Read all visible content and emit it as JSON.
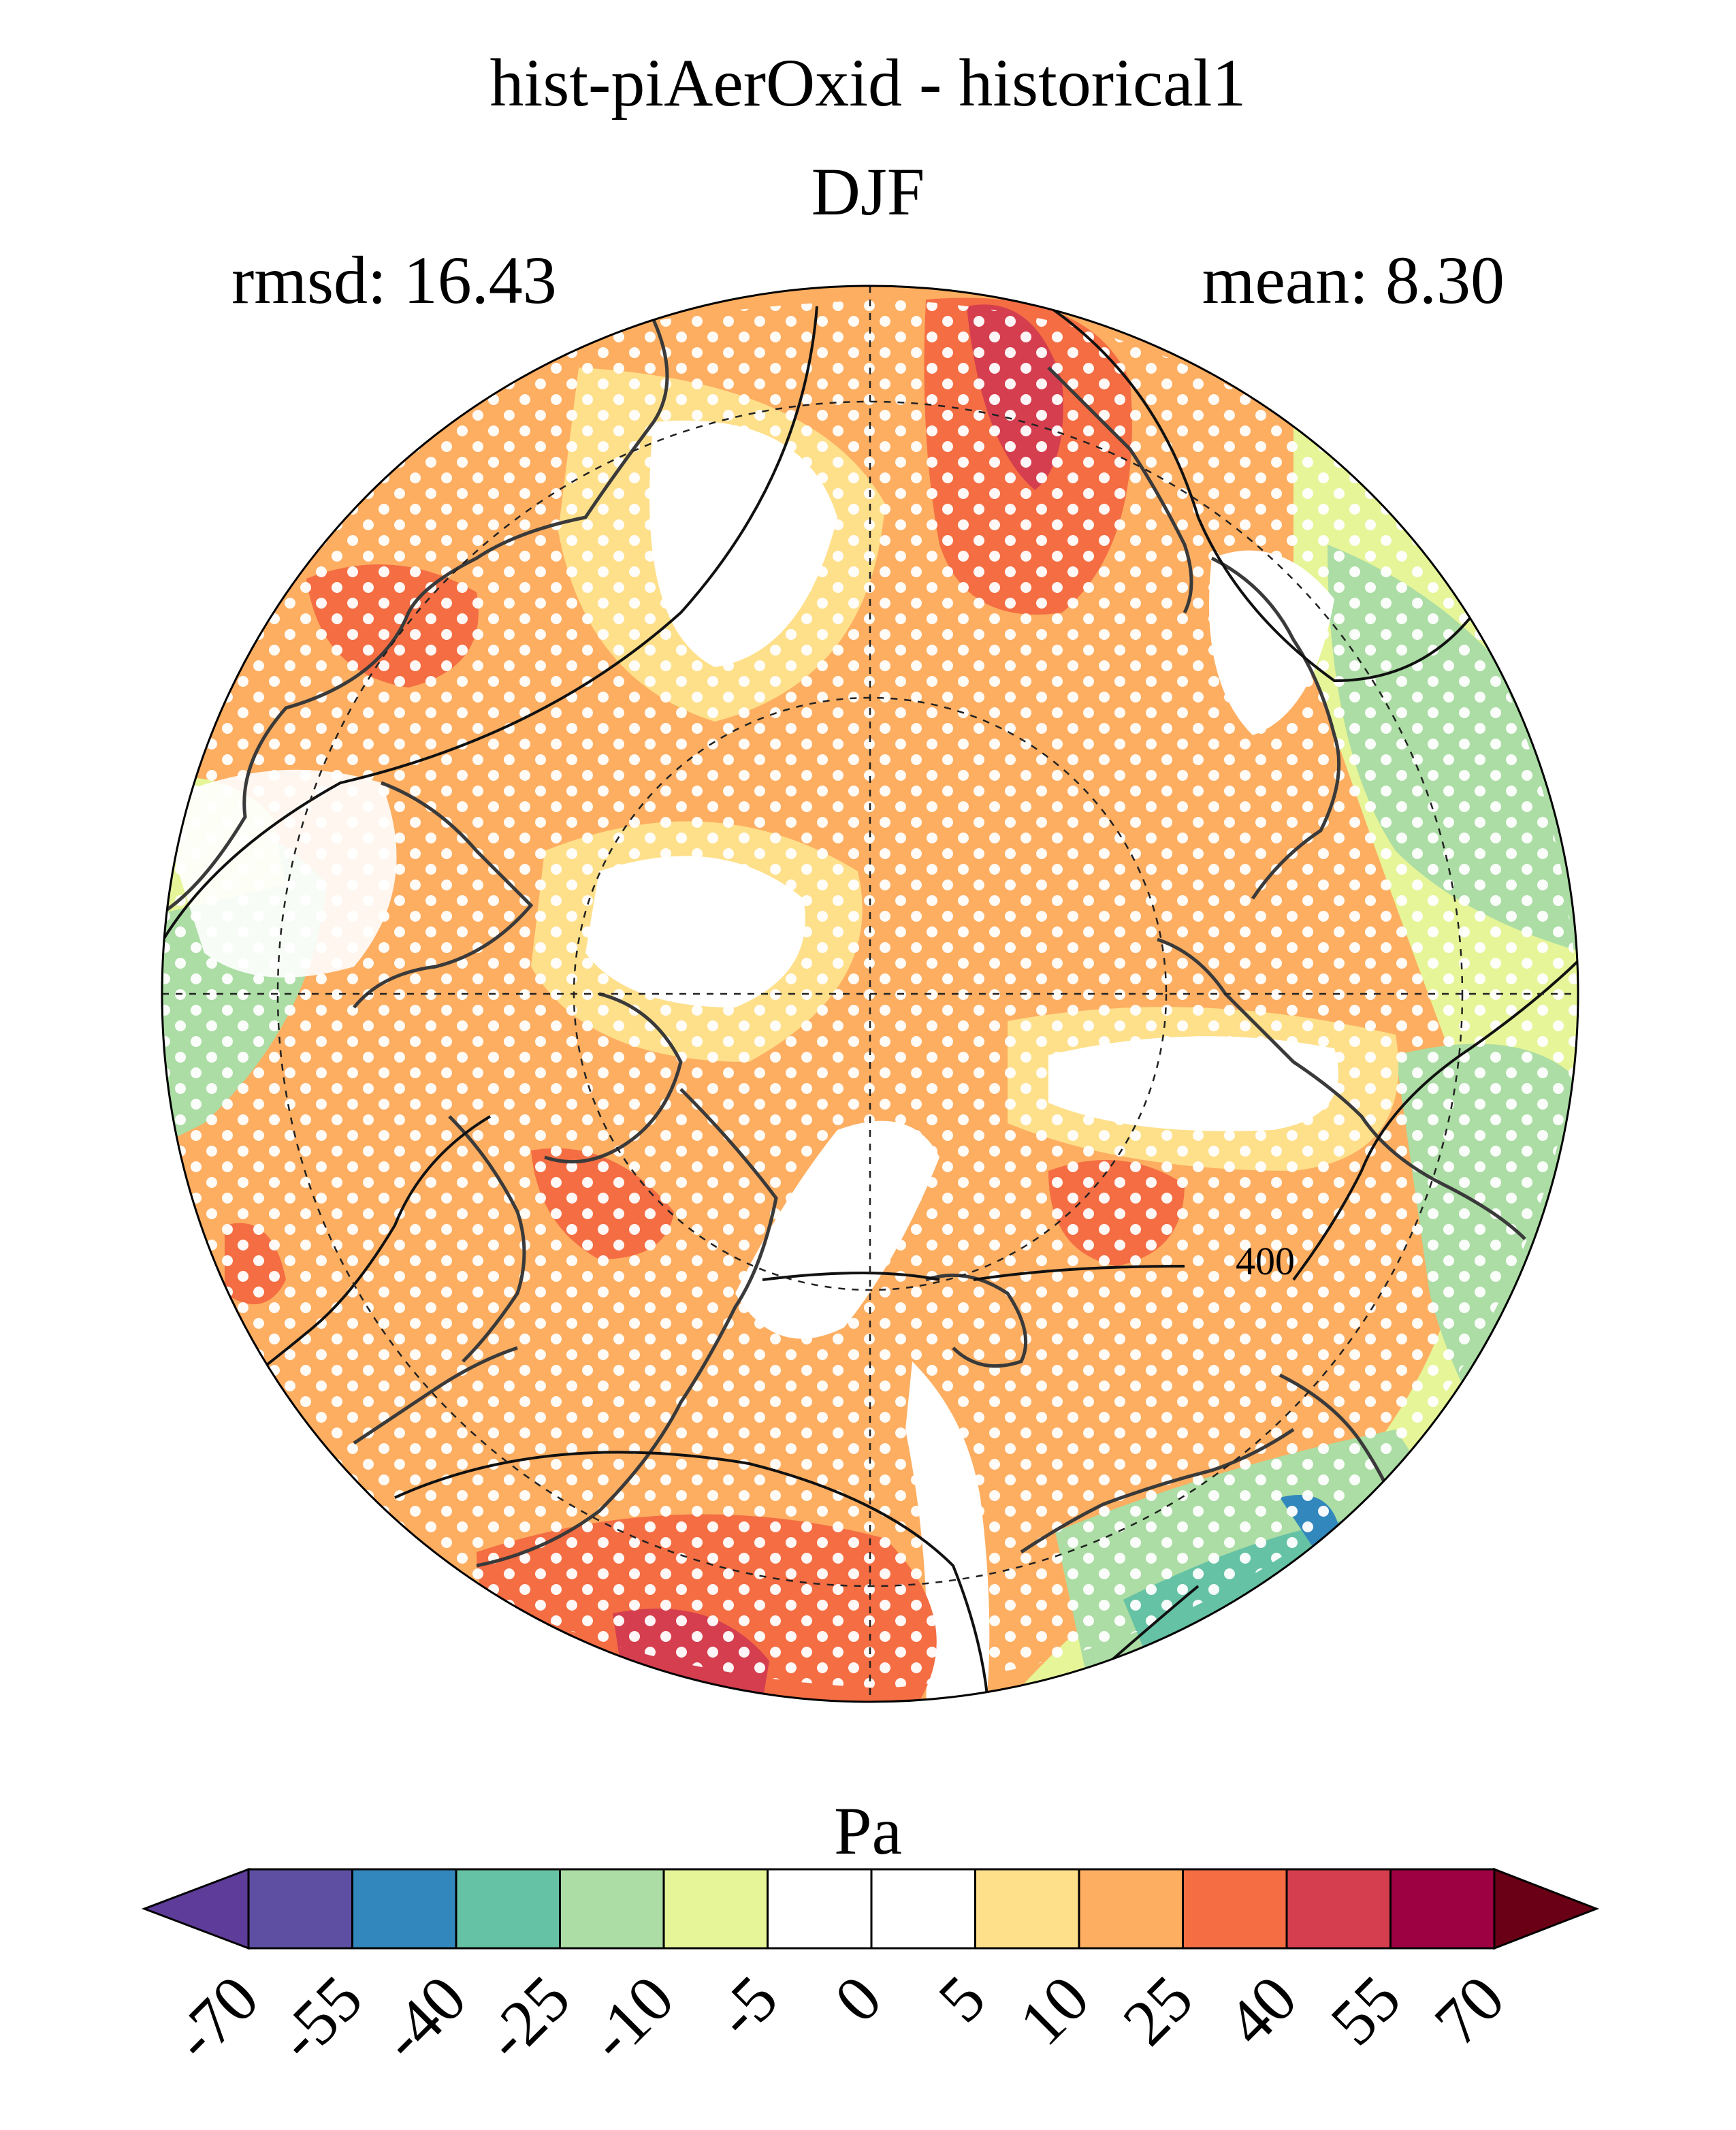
{
  "header": {
    "title": "hist-piAerOxid - historical1",
    "season": "DJF",
    "rmsd_text": "rmsd: 16.43",
    "mean_text": "mean: 8.30"
  },
  "map": {
    "projection": "north-polar-stereographic",
    "variable_units": "Pa",
    "contour_label": "400",
    "stippling": "white dots mark significant areas"
  },
  "colorbar": {
    "units": "Pa",
    "levels": [
      "-70",
      "-55",
      "-40",
      "-25",
      "-10",
      "-5",
      "0",
      "5",
      "10",
      "25",
      "40",
      "55",
      "70"
    ],
    "colors": [
      "#5e3c99",
      "#5e4fa2",
      "#3288bd",
      "#66c2a5",
      "#abdda4",
      "#e6f598",
      "#ffffff",
      "#ffffff",
      "#fee08b",
      "#fdae61",
      "#f46d43",
      "#d53e4f",
      "#9e0142",
      "#6a0015"
    ]
  }
}
